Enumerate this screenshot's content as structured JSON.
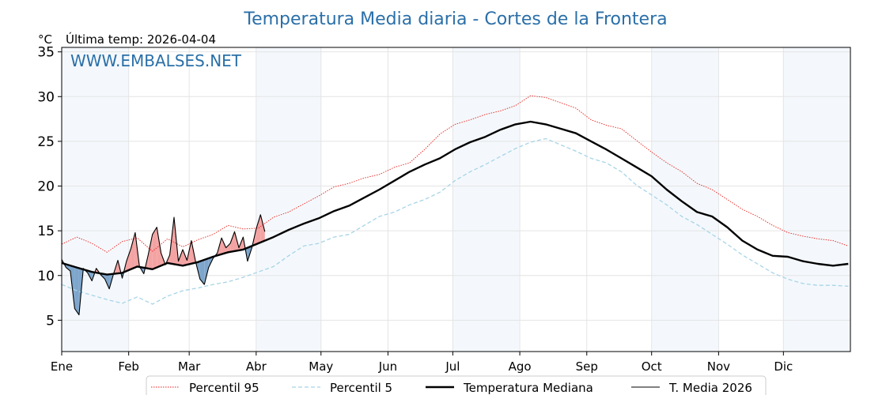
{
  "chart_data": {
    "type": "line",
    "title": "Temperatura Media diaria - Cortes de la Frontera",
    "unit": "°C",
    "last_update": "Última temp: 2026-04-04",
    "watermark": "WWW.EMBALSES.NET",
    "ylim": [
      1.5,
      35.5
    ],
    "yticks": [
      5,
      10,
      15,
      20,
      25,
      30,
      35
    ],
    "x_range_days": [
      1,
      366
    ],
    "months": [
      {
        "label": "Ene",
        "start_day": 1,
        "end_day": 32
      },
      {
        "label": "Feb",
        "start_day": 32,
        "end_day": 60
      },
      {
        "label": "Mar",
        "start_day": 60,
        "end_day": 91
      },
      {
        "label": "Abr",
        "start_day": 91,
        "end_day": 121
      },
      {
        "label": "May",
        "start_day": 121,
        "end_day": 152
      },
      {
        "label": "Jun",
        "start_day": 152,
        "end_day": 182
      },
      {
        "label": "Jul",
        "start_day": 182,
        "end_day": 213
      },
      {
        "label": "Ago",
        "start_day": 213,
        "end_day": 244
      },
      {
        "label": "Sep",
        "start_day": 244,
        "end_day": 274
      },
      {
        "label": "Oct",
        "start_day": 274,
        "end_day": 305
      },
      {
        "label": "Nov",
        "start_day": 305,
        "end_day": 335
      },
      {
        "label": "Dic",
        "start_day": 335,
        "end_day": 366
      }
    ],
    "shaded_months": [
      "Ene",
      "Abr",
      "Jul",
      "Oct",
      "Dic"
    ],
    "grid": true,
    "legend_position": "bottom",
    "series": [
      {
        "name": "Percentil 95",
        "style": "dotted",
        "color": "#e8211c",
        "x": [
          1,
          8,
          15,
          22,
          29,
          36,
          43,
          50,
          57,
          64,
          71,
          78,
          85,
          92,
          99,
          106,
          113,
          120,
          127,
          134,
          141,
          148,
          155,
          162,
          169,
          176,
          183,
          190,
          197,
          204,
          211,
          218,
          225,
          232,
          239,
          246,
          253,
          260,
          267,
          274,
          281,
          288,
          295,
          302,
          309,
          316,
          323,
          330,
          337,
          344,
          351,
          358,
          365
        ],
        "y": [
          13.5,
          14.3,
          13.6,
          12.6,
          13.8,
          14.2,
          12.7,
          14.1,
          13.2,
          14.0,
          14.6,
          15.6,
          15.2,
          15.3,
          16.5,
          17.1,
          18.0,
          18.9,
          19.9,
          20.3,
          20.9,
          21.3,
          22.1,
          22.6,
          24.1,
          25.8,
          26.9,
          27.4,
          28.0,
          28.4,
          29.0,
          30.1,
          29.9,
          29.3,
          28.7,
          27.4,
          26.8,
          26.4,
          25.1,
          23.8,
          22.6,
          21.6,
          20.3,
          19.6,
          18.5,
          17.4,
          16.6,
          15.6,
          14.8,
          14.4,
          14.1,
          13.9,
          13.3
        ]
      },
      {
        "name": "Percentil 5",
        "style": "dashed",
        "color": "#a8d4e6",
        "x": [
          1,
          8,
          15,
          22,
          29,
          36,
          43,
          50,
          57,
          64,
          71,
          78,
          85,
          92,
          99,
          106,
          113,
          120,
          127,
          134,
          141,
          148,
          155,
          162,
          169,
          176,
          183,
          190,
          197,
          204,
          211,
          218,
          225,
          232,
          239,
          246,
          253,
          260,
          267,
          274,
          281,
          288,
          295,
          302,
          309,
          316,
          323,
          330,
          337,
          344,
          351,
          358,
          365
        ],
        "y": [
          9.0,
          8.3,
          7.8,
          7.3,
          6.9,
          7.6,
          6.8,
          7.7,
          8.3,
          8.6,
          9.0,
          9.3,
          9.8,
          10.4,
          11.0,
          12.2,
          13.3,
          13.6,
          14.3,
          14.6,
          15.6,
          16.6,
          17.1,
          17.9,
          18.5,
          19.3,
          20.6,
          21.6,
          22.4,
          23.3,
          24.2,
          24.9,
          25.3,
          24.6,
          23.9,
          23.1,
          22.6,
          21.6,
          20.1,
          19.0,
          17.9,
          16.6,
          15.7,
          14.6,
          13.5,
          12.3,
          11.3,
          10.3,
          9.6,
          9.1,
          8.9,
          8.9,
          8.8
        ]
      },
      {
        "name": "Temperatura Mediana",
        "style": "solid-thick",
        "color": "#000000",
        "x": [
          1,
          8,
          15,
          22,
          29,
          36,
          43,
          50,
          57,
          64,
          71,
          78,
          85,
          92,
          99,
          106,
          113,
          120,
          127,
          134,
          141,
          148,
          155,
          162,
          169,
          176,
          183,
          190,
          197,
          204,
          211,
          218,
          225,
          232,
          239,
          246,
          253,
          260,
          267,
          274,
          281,
          288,
          295,
          302,
          309,
          316,
          323,
          330,
          337,
          344,
          351,
          358,
          365
        ],
        "y": [
          11.4,
          10.9,
          10.4,
          10.1,
          10.3,
          11.0,
          10.7,
          11.4,
          11.1,
          11.5,
          12.1,
          12.6,
          12.9,
          13.6,
          14.3,
          15.1,
          15.8,
          16.4,
          17.2,
          17.8,
          18.7,
          19.6,
          20.6,
          21.6,
          22.4,
          23.1,
          24.1,
          24.9,
          25.5,
          26.3,
          26.9,
          27.2,
          26.9,
          26.4,
          25.9,
          25.0,
          24.1,
          23.1,
          22.1,
          21.1,
          19.6,
          18.3,
          17.1,
          16.6,
          15.4,
          13.9,
          12.9,
          12.2,
          12.1,
          11.6,
          11.3,
          11.1,
          11.3
        ]
      },
      {
        "name": "T. Media 2026",
        "style": "solid-thin",
        "color": "#000000",
        "x": [
          1,
          3,
          5,
          7,
          9,
          11,
          13,
          15,
          17,
          19,
          21,
          23,
          25,
          27,
          29,
          31,
          33,
          35,
          37,
          39,
          41,
          43,
          45,
          47,
          49,
          51,
          53,
          55,
          57,
          59,
          61,
          63,
          65,
          67,
          69,
          71,
          73,
          75,
          77,
          79,
          81,
          83,
          85,
          87,
          89,
          91,
          93,
          95
        ],
        "y": [
          11.8,
          10.9,
          10.5,
          6.3,
          5.6,
          10.8,
          10.3,
          9.4,
          10.8,
          10.1,
          9.6,
          8.5,
          10.2,
          11.7,
          9.7,
          11.6,
          13.0,
          14.8,
          11.0,
          10.2,
          12.3,
          14.6,
          15.4,
          12.5,
          11.2,
          12.3,
          16.5,
          11.6,
          12.9,
          11.7,
          13.9,
          11.5,
          9.6,
          9.0,
          10.9,
          11.9,
          12.5,
          14.2,
          13.1,
          13.6,
          14.9,
          13.1,
          14.3,
          11.6,
          13.1,
          15.2,
          16.8,
          14.9
        ]
      }
    ]
  }
}
